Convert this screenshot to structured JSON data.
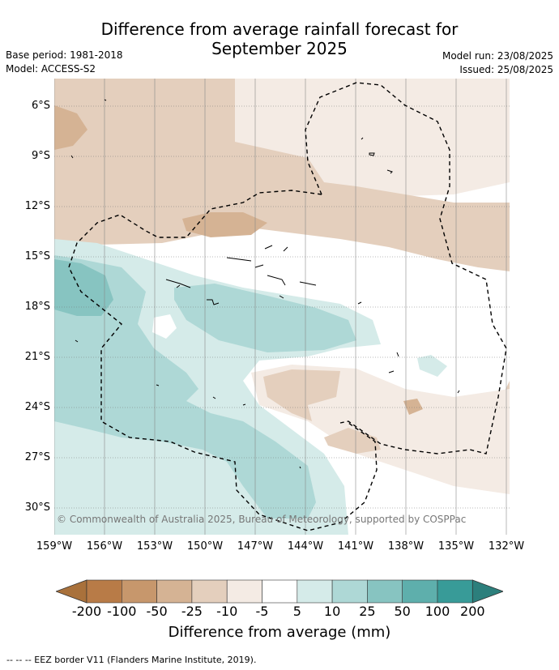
{
  "title_line1": "Difference from average rainfall forecast for",
  "title_line2": "September 2025",
  "meta_left": [
    "Base period: 1981-2018",
    "Model: ACCESS-S2"
  ],
  "meta_right": [
    "Model run: 23/08/2025",
    "Issued: 25/08/2025"
  ],
  "lat_labels": [
    "6°S",
    "9°S",
    "12°S",
    "15°S",
    "18°S",
    "21°S",
    "24°S",
    "27°S",
    "30°S"
  ],
  "lon_labels": [
    "159°W",
    "156°W",
    "153°W",
    "150°W",
    "147°W",
    "144°W",
    "141°W",
    "138°W",
    "135°W",
    "132°W"
  ],
  "copyright": "© Commonwealth of Australia 2025, Bureau of Meteorology, supported by COSPPac",
  "colorbar": {
    "title": "Difference from average (mm)",
    "labels": [
      "-200",
      "-100",
      "-50",
      "-25",
      "-10",
      "-5",
      "5",
      "10",
      "25",
      "50",
      "100",
      "200"
    ],
    "colors": [
      "#a9713b",
      "#b87b47",
      "#c7976c",
      "#d5b394",
      "#e4cfbd",
      "#f4ebe4",
      "#ffffff",
      "#d5ebe9",
      "#aed8d6",
      "#87c4c1",
      "#5eafac",
      "#389b98",
      "#2c7f7c"
    ]
  },
  "footer": "--  --  -- EEZ border V11 (Flanders Marine Institute, 2019)."
}
